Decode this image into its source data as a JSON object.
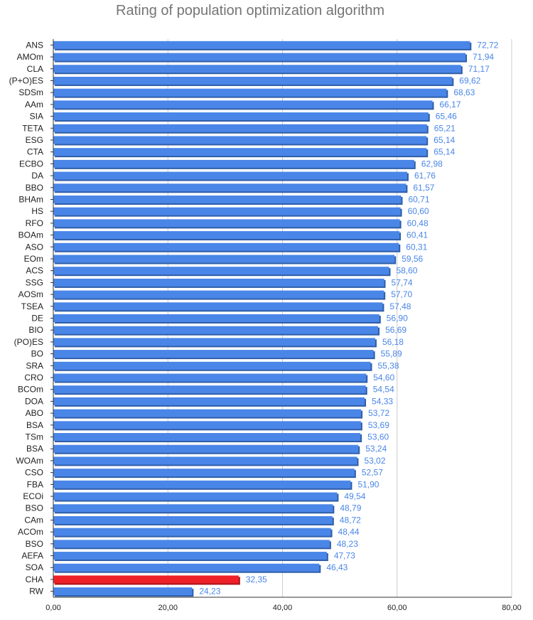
{
  "chart_data": {
    "type": "bar",
    "orientation": "horizontal",
    "title": "Rating of population optimization algorithm",
    "xlabel": "",
    "ylabel": "",
    "xlim": [
      0,
      80
    ],
    "x_ticks": [
      "0,00",
      "20,00",
      "40,00",
      "60,00",
      "80,00"
    ],
    "grid": true,
    "legend": "none",
    "bar_color": "#4a86e8",
    "highlight_color": "#ee2129",
    "highlight_category": "CHA",
    "categories": [
      "ANS",
      "AMOm",
      "CLA",
      "(P+O)ES",
      "SDSm",
      "AAm",
      "SIA",
      "TETA",
      "ESG",
      "CTA",
      "ECBO",
      "DA",
      "BBO",
      "BHAm",
      "HS",
      "RFO",
      "BOAm",
      "ASO",
      "EOm",
      "ACS",
      "SSG",
      "AOSm",
      "TSEA",
      "DE",
      "BIO",
      "(PO)ES",
      "BO",
      "SRA",
      "CRO",
      "BCOm",
      "DOA",
      "ABO",
      "BSA",
      "TSm",
      "BSA",
      "WOAm",
      "CSO",
      "FBA",
      "ECOi",
      "BSO",
      "CAm",
      "ACOm",
      "BSO",
      "AEFA",
      "SOA",
      "CHA",
      "RW"
    ],
    "values": [
      72.72,
      71.94,
      71.17,
      69.62,
      68.63,
      66.17,
      65.46,
      65.21,
      65.14,
      65.14,
      62.98,
      61.76,
      61.57,
      60.71,
      60.6,
      60.48,
      60.41,
      60.31,
      59.56,
      58.6,
      57.74,
      57.7,
      57.48,
      56.9,
      56.69,
      56.18,
      55.89,
      55.38,
      54.6,
      54.54,
      54.33,
      53.72,
      53.69,
      53.6,
      53.24,
      53.02,
      52.57,
      51.9,
      49.54,
      48.79,
      48.72,
      48.44,
      48.23,
      47.73,
      46.43,
      32.35,
      24.23
    ],
    "value_labels": [
      "72,72",
      "71,94",
      "71,17",
      "69,62",
      "68,63",
      "66,17",
      "65,46",
      "65,21",
      "65,14",
      "65,14",
      "62,98",
      "61,76",
      "61,57",
      "60,71",
      "60,60",
      "60,48",
      "60,41",
      "60,31",
      "59,56",
      "58,60",
      "57,74",
      "57,70",
      "57,48",
      "56,90",
      "56,69",
      "56,18",
      "55,89",
      "55,38",
      "54,60",
      "54,54",
      "54,33",
      "53,72",
      "53,69",
      "53,60",
      "53,24",
      "53,02",
      "52,57",
      "51,90",
      "49,54",
      "48,79",
      "48,72",
      "48,44",
      "48,23",
      "47,73",
      "46,43",
      "32,35",
      "24,23"
    ]
  }
}
